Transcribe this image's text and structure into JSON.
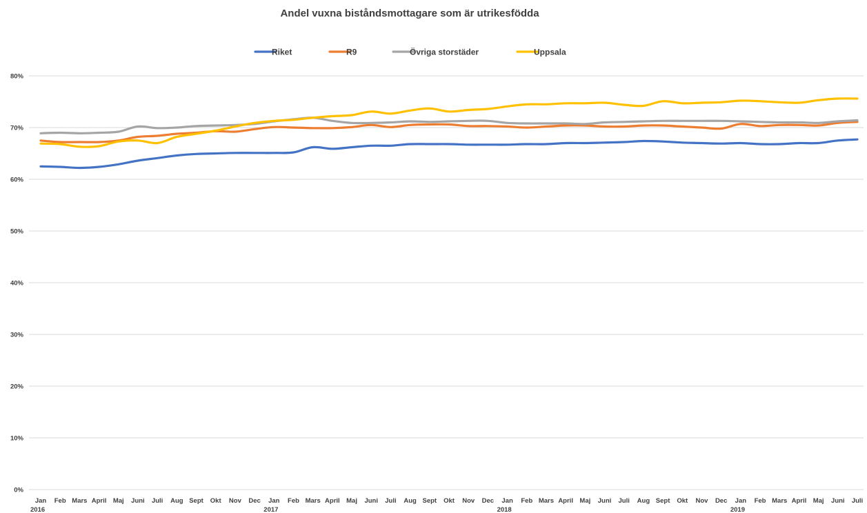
{
  "chart_data": {
    "type": "line",
    "title": "Andel vuxna biståndsmottagare som är utrikesfödda",
    "xlabel": "",
    "ylabel": "",
    "ylim": [
      0,
      0.8
    ],
    "yticks": [
      "0%",
      "10%",
      "20%",
      "30%",
      "40%",
      "50%",
      "60%",
      "70%",
      "80%"
    ],
    "grid": true,
    "legend_position": "top",
    "categories": [
      "Jan",
      "Feb",
      "Mars",
      "April",
      "Maj",
      "Juni",
      "Juli",
      "Aug",
      "Sept",
      "Okt",
      "Nov",
      "Dec",
      "Jan",
      "Feb",
      "Mars",
      "April",
      "Maj",
      "Juni",
      "Juli",
      "Aug",
      "Sept",
      "Okt",
      "Nov",
      "Dec",
      "Jan",
      "Feb",
      "Mars",
      "April",
      "Maj",
      "Juni",
      "Juli",
      "Aug",
      "Sept",
      "Okt",
      "Nov",
      "Dec",
      "Jan",
      "Feb",
      "Mars",
      "April",
      "Maj",
      "Juni",
      "Juli"
    ],
    "years": [
      {
        "label": "2016",
        "index": 0
      },
      {
        "label": "2017",
        "index": 12
      },
      {
        "label": "2018",
        "index": 24
      },
      {
        "label": "2019",
        "index": 36
      }
    ],
    "series": [
      {
        "name": "Riket",
        "color": "#4472C4",
        "values": [
          0.625,
          0.624,
          0.622,
          0.624,
          0.629,
          0.636,
          0.641,
          0.646,
          0.649,
          0.65,
          0.651,
          0.651,
          0.651,
          0.652,
          0.662,
          0.659,
          0.662,
          0.665,
          0.665,
          0.668,
          0.668,
          0.668,
          0.667,
          0.667,
          0.667,
          0.668,
          0.668,
          0.67,
          0.67,
          0.671,
          0.672,
          0.674,
          0.673,
          0.671,
          0.67,
          0.669,
          0.67,
          0.668,
          0.668,
          0.67,
          0.67,
          0.675,
          0.677
        ]
      },
      {
        "name": "R9",
        "color": "#ED7D31",
        "values": [
          0.675,
          0.672,
          0.672,
          0.672,
          0.675,
          0.682,
          0.684,
          0.688,
          0.69,
          0.693,
          0.692,
          0.697,
          0.701,
          0.7,
          0.699,
          0.699,
          0.701,
          0.705,
          0.701,
          0.705,
          0.706,
          0.706,
          0.703,
          0.703,
          0.702,
          0.7,
          0.702,
          0.704,
          0.704,
          0.702,
          0.702,
          0.704,
          0.704,
          0.702,
          0.7,
          0.698,
          0.707,
          0.703,
          0.705,
          0.705,
          0.704,
          0.709,
          0.711
        ]
      },
      {
        "name": "Övriga storstäder",
        "color": "#A5A5A5",
        "values": [
          0.689,
          0.69,
          0.689,
          0.69,
          0.692,
          0.702,
          0.699,
          0.7,
          0.703,
          0.704,
          0.705,
          0.707,
          0.712,
          0.716,
          0.719,
          0.713,
          0.709,
          0.709,
          0.71,
          0.712,
          0.711,
          0.712,
          0.713,
          0.713,
          0.709,
          0.708,
          0.708,
          0.708,
          0.707,
          0.71,
          0.711,
          0.712,
          0.713,
          0.713,
          0.713,
          0.713,
          0.712,
          0.711,
          0.71,
          0.71,
          0.709,
          0.712,
          0.714
        ]
      },
      {
        "name": "Uppsala",
        "color": "#FFC000",
        "values": [
          0.669,
          0.668,
          0.663,
          0.664,
          0.673,
          0.675,
          0.67,
          0.682,
          0.688,
          0.694,
          0.702,
          0.709,
          0.713,
          0.715,
          0.719,
          0.722,
          0.724,
          0.731,
          0.727,
          0.733,
          0.737,
          0.731,
          0.734,
          0.736,
          0.741,
          0.745,
          0.745,
          0.747,
          0.747,
          0.748,
          0.744,
          0.742,
          0.751,
          0.747,
          0.748,
          0.749,
          0.752,
          0.751,
          0.749,
          0.748,
          0.753,
          0.756,
          0.756
        ]
      }
    ]
  }
}
